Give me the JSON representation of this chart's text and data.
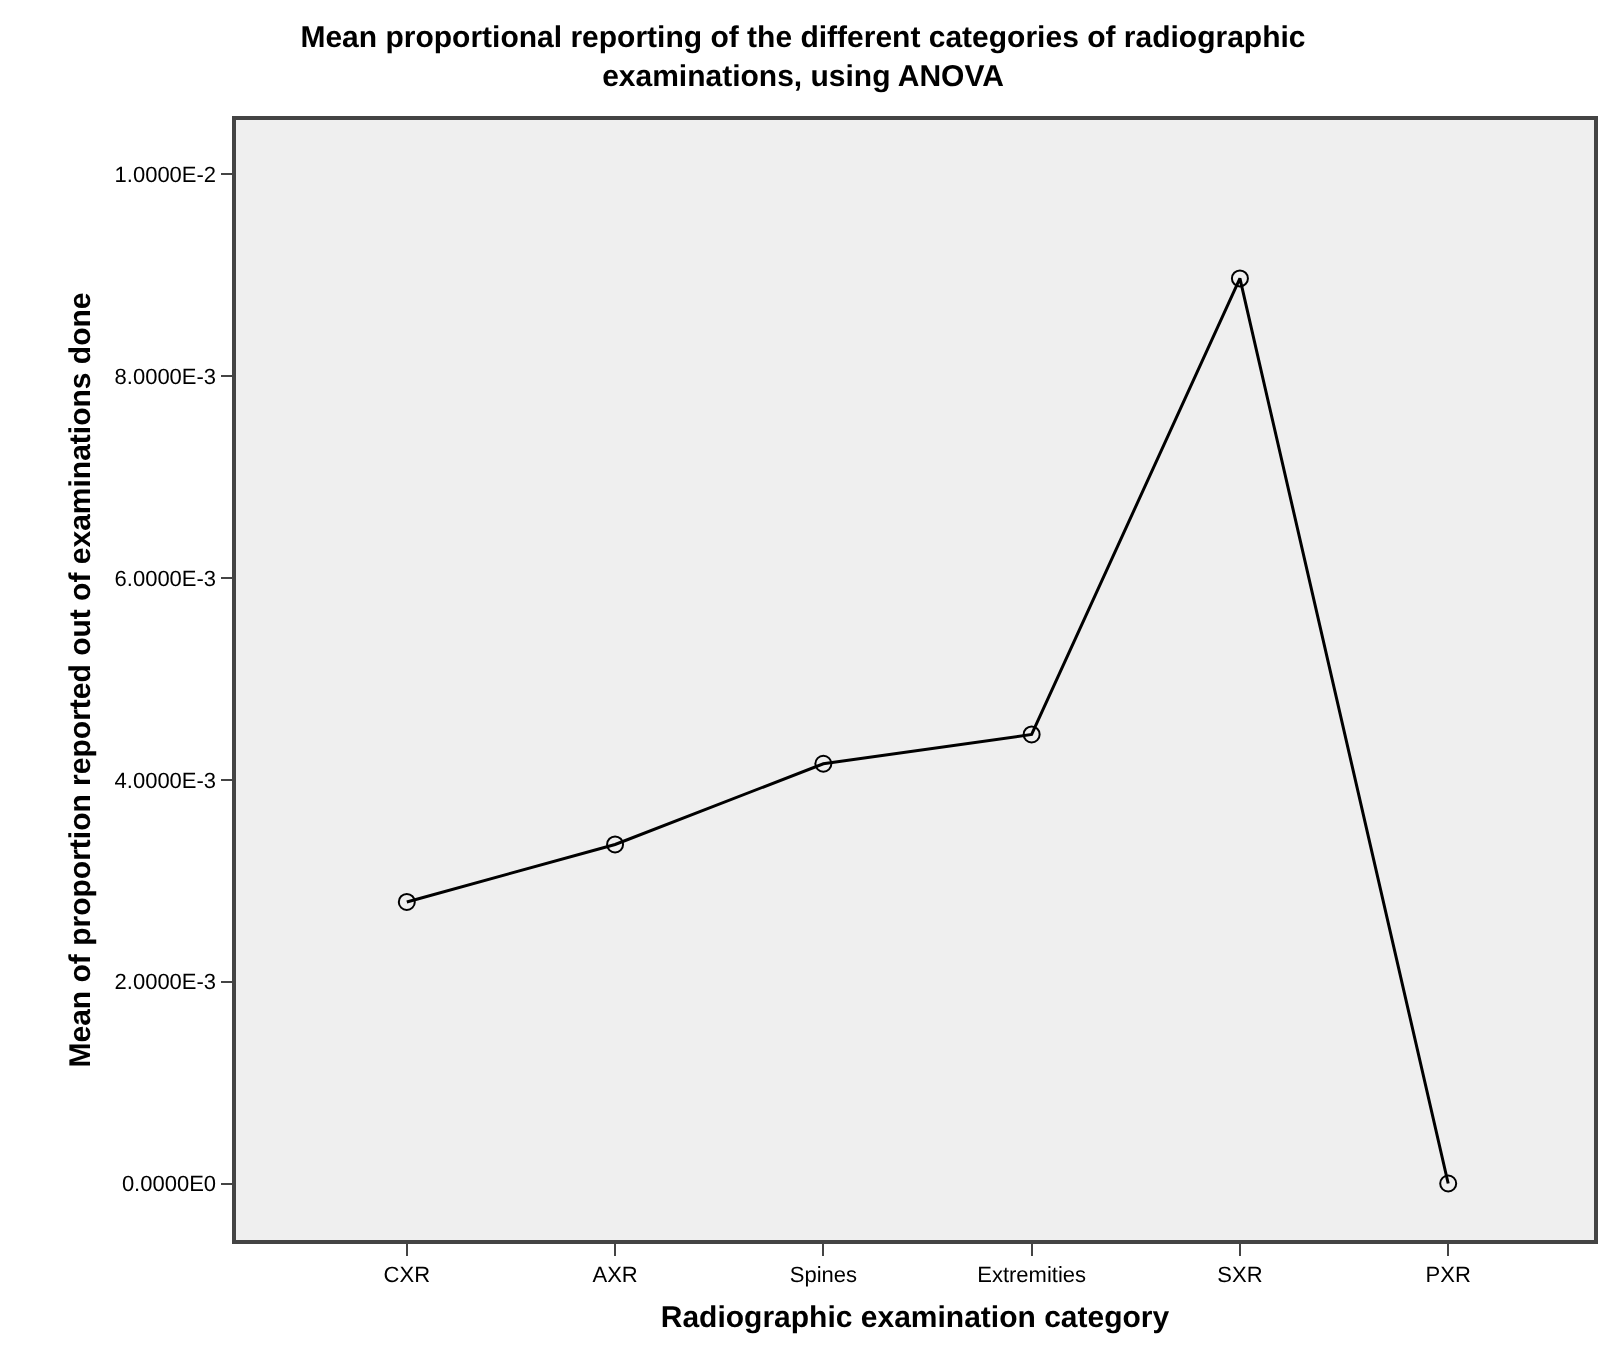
{
  "chart_data": {
    "type": "line",
    "title": "Mean proportional reporting of the different categories of radiographic examinations, using ANOVA",
    "xlabel": "Radiographic examination category",
    "ylabel": "Mean of proportion reported out of examinations done",
    "categories": [
      "CXR",
      "AXR",
      "Spines",
      "Extremities",
      "SXR",
      "PXR"
    ],
    "series": [
      {
        "color": "#000000",
        "values": [
          0.00279,
          0.00336,
          0.00416,
          0.00445,
          0.00897,
          0
        ]
      }
    ],
    "ylim": [
      -0.00056,
      0.01054
    ],
    "yticks": [
      {
        "value": 0,
        "label": "0.0000E0"
      },
      {
        "value": 0.002,
        "label": "2.0000E-3"
      },
      {
        "value": 0.004,
        "label": "4.0000E-3"
      },
      {
        "value": 0.006,
        "label": "6.0000E-3"
      },
      {
        "value": 0.008,
        "label": "8.0000E-3"
      },
      {
        "value": 0.01,
        "label": "1.0000E-2"
      }
    ],
    "grid": false,
    "marker": "circle",
    "line_style": "solid"
  }
}
